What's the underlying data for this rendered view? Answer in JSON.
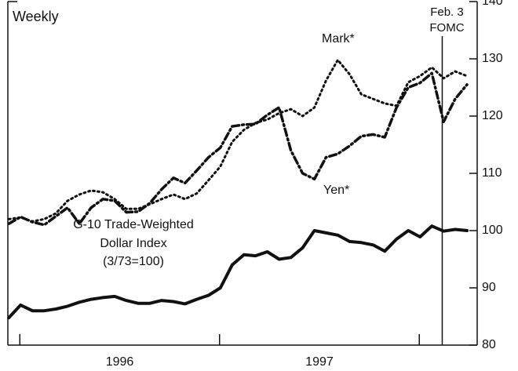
{
  "chart_data": {
    "type": "line",
    "title": "Weekly",
    "annotations": [
      "Mark*",
      "Yen*"
    ],
    "index_label": [
      "G-10 Trade-Weighted",
      "Dollar Index",
      "(3/73=100)"
    ],
    "event": {
      "x": 1998.115,
      "label": [
        "Feb. 3",
        "FOMC"
      ]
    },
    "x": [
      1995.945,
      1996.004,
      1996.063,
      1996.122,
      1996.18,
      1996.239,
      1996.298,
      1996.357,
      1996.416,
      1996.475,
      1996.533,
      1996.592,
      1996.651,
      1996.71,
      1996.769,
      1996.827,
      1996.886,
      1996.945,
      1997.004,
      1997.063,
      1997.122,
      1997.18,
      1997.239,
      1997.298,
      1997.357,
      1997.416,
      1997.475,
      1997.533,
      1997.592,
      1997.651,
      1997.71,
      1997.769,
      1997.827,
      1997.886,
      1997.945,
      1998.004,
      1998.063,
      1998.122,
      1998.18,
      1998.239
    ],
    "series": [
      {
        "name": "Mark*",
        "color": "#111111",
        "dash": "dotted",
        "values": [
          102,
          102.3,
          101.6,
          102,
          103,
          105.2,
          106.3,
          107,
          106.7,
          105.5,
          103.8,
          103.8,
          104.6,
          105.5,
          106.3,
          105.5,
          106.5,
          108.8,
          111.2,
          115.5,
          117.6,
          118.8,
          119.4,
          120.5,
          121.2,
          120,
          121.5,
          126.2,
          129.8,
          127.3,
          123.8,
          123,
          122.2,
          121.8,
          125.9,
          127,
          128.5,
          126.6,
          127.8,
          127
        ]
      },
      {
        "name": "Yen*",
        "color": "#111111",
        "dash": "dash-dot",
        "values": [
          101.2,
          102.4,
          101.5,
          101,
          102.5,
          104,
          101.2,
          104,
          105.5,
          105.2,
          103.2,
          103.3,
          104.8,
          107.2,
          109.2,
          108.3,
          110.5,
          112.8,
          114.5,
          118.2,
          118.5,
          118.6,
          120.2,
          121.5,
          114,
          110,
          109,
          112.8,
          113.4,
          114.8,
          116.5,
          116.8,
          116.3,
          121.5,
          125,
          125.8,
          127.5,
          119,
          123,
          125.5
        ]
      },
      {
        "name": "G-10 Trade-Weighted Dollar Index",
        "color": "#111111",
        "dash": "solid",
        "values": [
          84.8,
          87,
          86,
          86,
          86.3,
          86.8,
          87.5,
          88,
          88.3,
          88.5,
          87.8,
          87.3,
          87.3,
          87.8,
          87.6,
          87.2,
          88,
          88.7,
          90,
          94,
          95.8,
          95.6,
          96.3,
          95,
          95.3,
          97,
          100,
          99.6,
          99.2,
          98.1,
          97.9,
          97.5,
          96.4,
          98.5,
          100,
          98.9,
          100.8,
          99.9,
          100.2,
          100
        ]
      }
    ],
    "xlim": [
      1995.94,
      1998.29
    ],
    "xticks": [
      1996,
      1997,
      1998
    ],
    "xlabels": [
      {
        "value": 1996.5,
        "label": "1996"
      },
      {
        "value": 1997.5,
        "label": "1997"
      }
    ],
    "ylim": [
      80,
      140
    ],
    "yticks": [
      80,
      90,
      100,
      110,
      120,
      130,
      140
    ],
    "y_axis_side": "right"
  }
}
